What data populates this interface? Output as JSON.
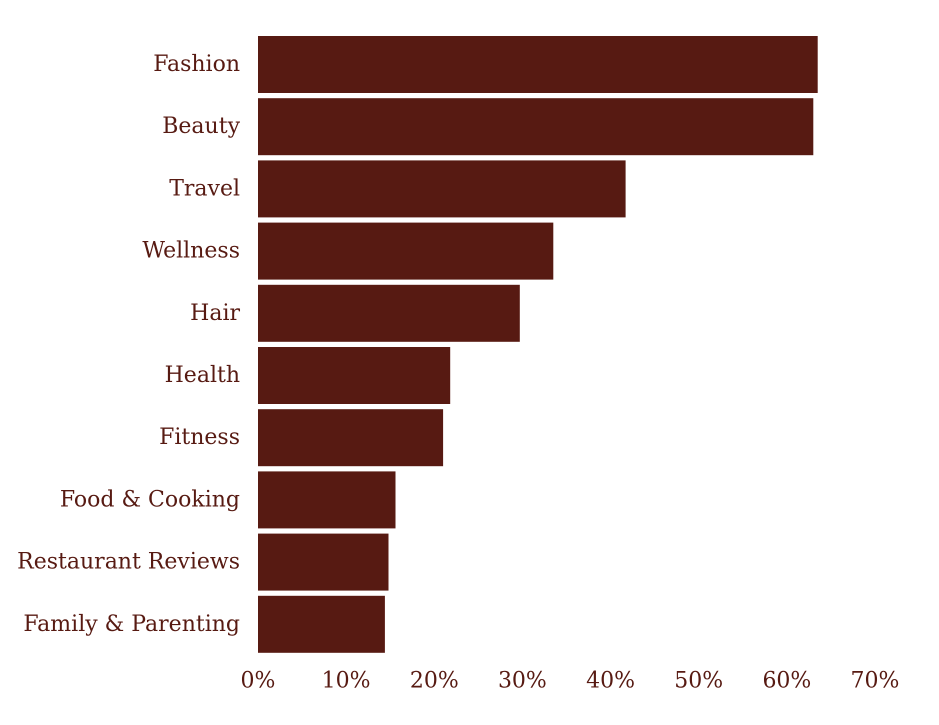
{
  "colors": {
    "bar": "#571a12",
    "text": "#571a12",
    "background": "#ffffff"
  },
  "chart_data": {
    "type": "bar",
    "orientation": "horizontal",
    "categories": [
      "Fashion",
      "Beauty",
      "Travel",
      "Wellness",
      "Hair",
      "Health",
      "Fitness",
      "Food & Cooking",
      "Restaurant Reviews",
      "Family & Parenting"
    ],
    "values": [
      63.5,
      63.0,
      41.7,
      33.5,
      29.7,
      21.8,
      21.0,
      15.6,
      14.8,
      14.4
    ],
    "value_unit": "%",
    "xlim": [
      0,
      70
    ],
    "xticks": [
      "0%",
      "10%",
      "20%",
      "30%",
      "40%",
      "50%",
      "60%",
      "70%"
    ],
    "title": "",
    "xlabel": "",
    "ylabel": "",
    "grid": false,
    "legend": "none"
  }
}
